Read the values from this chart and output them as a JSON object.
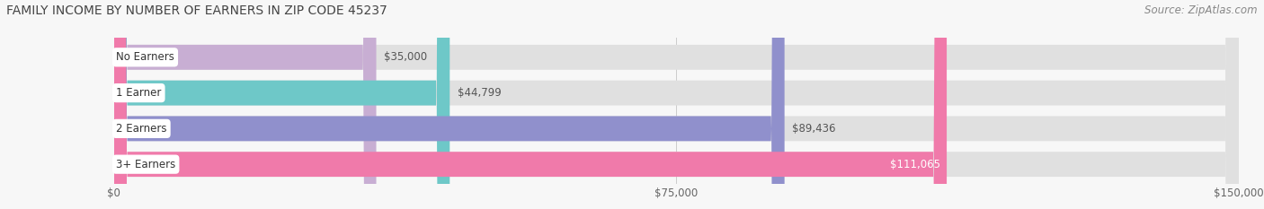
{
  "title": "FAMILY INCOME BY NUMBER OF EARNERS IN ZIP CODE 45237",
  "source": "Source: ZipAtlas.com",
  "categories": [
    "No Earners",
    "1 Earner",
    "2 Earners",
    "3+ Earners"
  ],
  "values": [
    35000,
    44799,
    89436,
    111065
  ],
  "bar_colors": [
    "#c8aed3",
    "#6ec8c8",
    "#9090cc",
    "#f07aaa"
  ],
  "bar_bg_color": "#e0e0e0",
  "value_labels": [
    "$35,000",
    "$44,799",
    "$89,436",
    "$111,065"
  ],
  "label_inside": [
    false,
    false,
    false,
    true
  ],
  "label_color_outside": "#555555",
  "label_color_inside": "#ffffff",
  "xlim": [
    0,
    150000
  ],
  "xtick_values": [
    0,
    75000,
    150000
  ],
  "xtick_labels": [
    "$0",
    "$75,000",
    "$150,000"
  ],
  "title_fontsize": 10,
  "source_fontsize": 8.5,
  "label_fontsize": 8.5,
  "cat_fontsize": 8.5,
  "xtick_fontsize": 8.5,
  "background_color": "#f7f7f7",
  "fig_bg_color": "#f7f7f7"
}
